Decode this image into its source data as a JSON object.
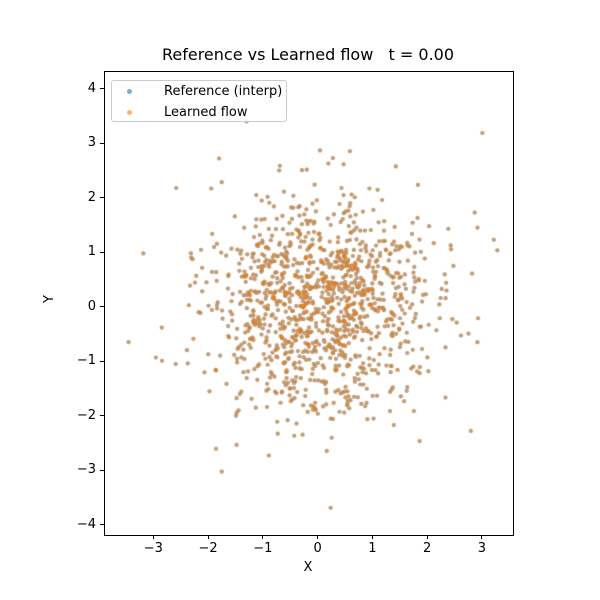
{
  "window": {
    "background_color": "#ffffff"
  },
  "chart_data": {
    "type": "scatter",
    "title": "Reference vs Learned flow   t = 0.00",
    "t": "0.00",
    "xlabel": "X",
    "ylabel": "Y",
    "xlim": [
      -3.9,
      3.55
    ],
    "ylim": [
      -4.17,
      4.33
    ],
    "xticks": [
      -3,
      -2,
      -1,
      0,
      1,
      2,
      3
    ],
    "yticks": [
      -4,
      -3,
      -2,
      -1,
      0,
      1,
      2,
      3,
      4
    ],
    "grid": false,
    "background": "#ffffff",
    "spine_color": "#000000",
    "legend": {
      "position": "upper-left",
      "edge_color": "#cccccc",
      "entries": [
        {
          "label": "Reference (interp)",
          "color": "#1f77b4",
          "marker": "dot"
        },
        {
          "label": "Learned flow",
          "color": "#ff7f0e",
          "marker": "dot"
        }
      ]
    },
    "series": [
      {
        "name": "Reference (interp)",
        "color": "#1f77b4",
        "alpha": 0.5,
        "marker_radius_px": 2.1,
        "n_points": 1200,
        "distribution": {
          "kind": "gaussian",
          "mean": [
            0,
            0
          ],
          "std": [
            1,
            1
          ]
        },
        "note": "coincides with Learned flow points at t = 0.00"
      },
      {
        "name": "Learned flow",
        "color": "#ff7f0e",
        "alpha": 0.5,
        "marker_radius_px": 2.1,
        "n_points": 1200,
        "distribution": {
          "kind": "gaussian",
          "mean": [
            0,
            0
          ],
          "std": [
            1,
            1
          ]
        },
        "note": "identical point positions as Reference (interp) at t = 0.00"
      }
    ],
    "seed": 1337,
    "notable_points": [
      [
        2.99,
        3.21
      ],
      [
        0.22,
        -3.67
      ],
      [
        -3.47,
        -0.63
      ],
      [
        2.9,
        -0.63
      ],
      [
        2.78,
        -2.26
      ],
      [
        -3.2,
        1.0
      ],
      [
        2.85,
        1.75
      ],
      [
        -2.6,
        2.2
      ]
    ]
  }
}
